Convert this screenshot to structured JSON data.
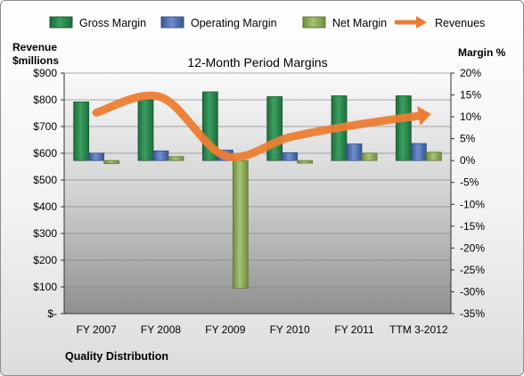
{
  "chart_data": {
    "type": "bar",
    "title": "12-Month Period Margins",
    "left_axis_label": [
      "Revenue",
      "$millions"
    ],
    "right_axis_label": "Margin %",
    "footer": "Quality Distribution",
    "categories": [
      "FY 2007",
      "FY 2008",
      "FY 2009",
      "FY 2010",
      "FY 2011",
      "TTM 3-2012"
    ],
    "left_ticks": [
      "$-",
      "$100",
      "$200",
      "$300",
      "$400",
      "$500",
      "$600",
      "$700",
      "$800",
      "$900"
    ],
    "left_range": [
      0,
      900
    ],
    "right_ticks": [
      "-35%",
      "-30%",
      "-25%",
      "-20%",
      "-15%",
      "-10%",
      "-5%",
      "0%",
      "5%",
      "10%",
      "15%",
      "20%"
    ],
    "right_range": [
      -35,
      20
    ],
    "grid": true,
    "legend_position": "top",
    "series": [
      {
        "name": "Gross Margin",
        "axis": "right",
        "kind": "bar",
        "color": "#2e8b57",
        "values": [
          13.4,
          13.9,
          15.7,
          14.6,
          14.8,
          14.8
        ]
      },
      {
        "name": "Operating Margin",
        "axis": "right",
        "kind": "bar",
        "color": "#4f6fb3",
        "values": [
          1.7,
          2.2,
          2.4,
          1.8,
          3.8,
          3.9
        ]
      },
      {
        "name": "Net Margin",
        "axis": "right",
        "kind": "bar",
        "color": "#8fae5c",
        "values": [
          -0.7,
          0.9,
          -29.2,
          -0.6,
          1.7,
          1.9
        ]
      },
      {
        "name": "Revenues",
        "axis": "left",
        "kind": "line",
        "color": "#ed7d31",
        "values": [
          752,
          810,
          590,
          660,
          705,
          740
        ]
      }
    ]
  }
}
